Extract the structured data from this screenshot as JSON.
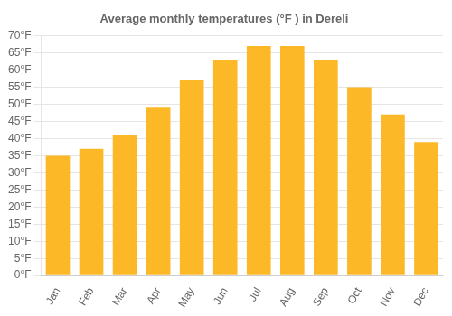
{
  "chart_data": {
    "type": "bar",
    "title": "Average monthly temperatures (°F ) in Dereli",
    "categories": [
      "Jan",
      "Feb",
      "Mar",
      "Apr",
      "May",
      "Jun",
      "Jul",
      "Aug",
      "Sep",
      "Oct",
      "Nov",
      "Dec"
    ],
    "values": [
      35,
      37,
      41,
      49,
      57,
      63,
      67,
      67,
      63,
      55,
      47,
      39
    ],
    "color": "#FDB827",
    "ylim": [
      0,
      70
    ],
    "yticks": [
      {
        "value": 0,
        "label": "0°F"
      },
      {
        "value": 5,
        "label": "5°F"
      },
      {
        "value": 10,
        "label": "10°F"
      },
      {
        "value": 15,
        "label": "15°F"
      },
      {
        "value": 20,
        "label": "20°F"
      },
      {
        "value": 25,
        "label": "25°F"
      },
      {
        "value": 30,
        "label": "30°F"
      },
      {
        "value": 35,
        "label": "35°F"
      },
      {
        "value": 40,
        "label": "40°F"
      },
      {
        "value": 45,
        "label": "45°F"
      },
      {
        "value": 50,
        "label": "50°F"
      },
      {
        "value": 55,
        "label": "55°F"
      },
      {
        "value": 60,
        "label": "60°F"
      },
      {
        "value": 65,
        "label": "65°F"
      },
      {
        "value": 70,
        "label": "70°F"
      }
    ],
    "grid": true
  }
}
